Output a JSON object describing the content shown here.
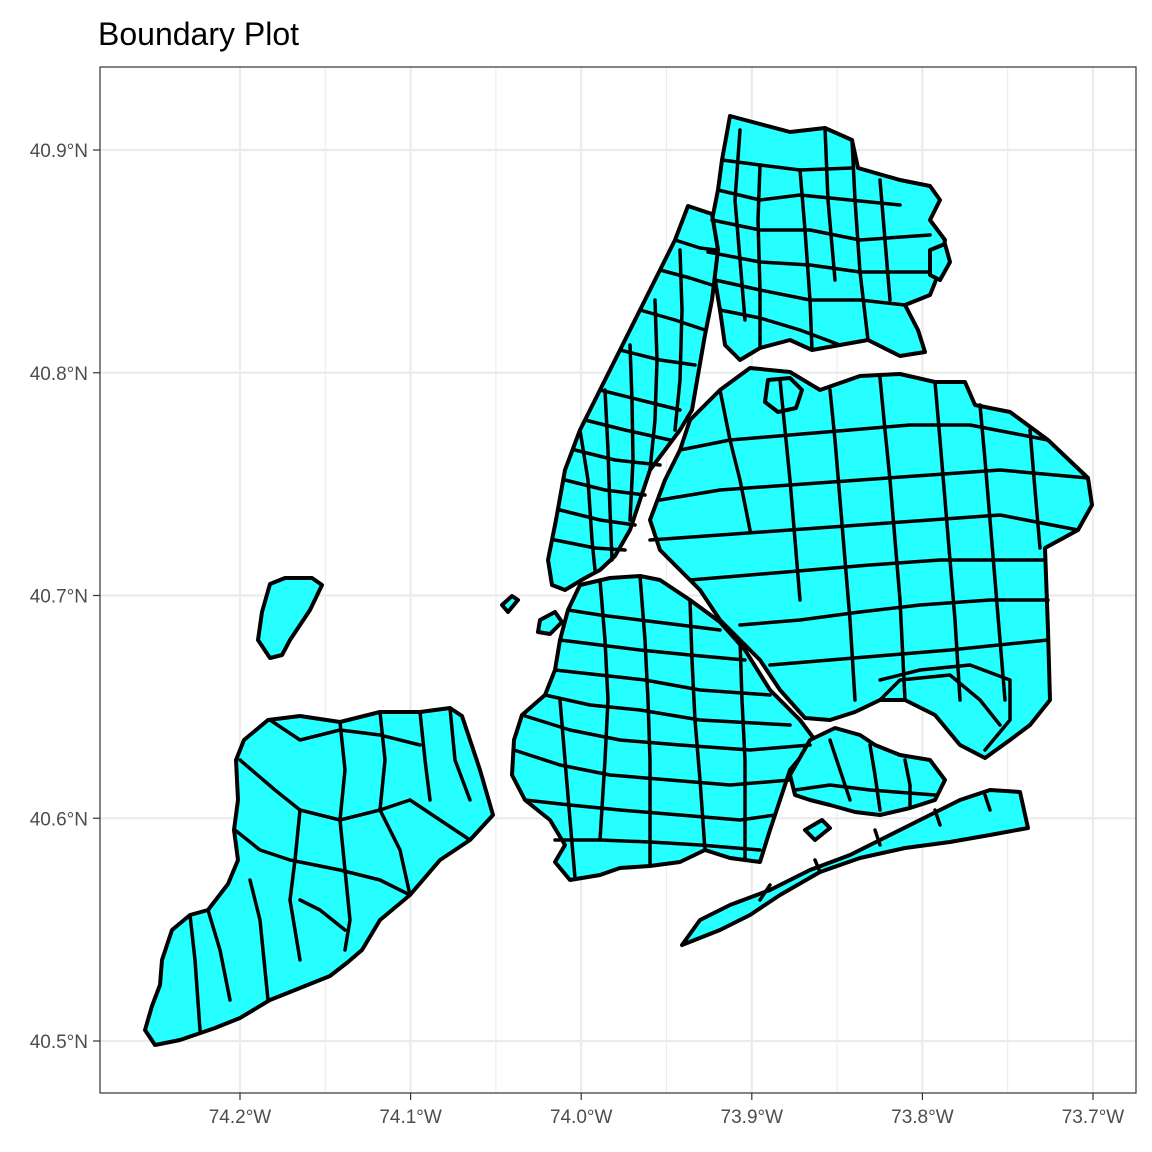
{
  "title": "Boundary Plot",
  "fill_color": "#26ffff",
  "stroke_color": "#000000",
  "grid_color": "#ebebeb",
  "x_axis": {
    "ticks": [
      {
        "value": -74.2,
        "label": "74.2°W"
      },
      {
        "value": -74.1,
        "label": "74.1°W"
      },
      {
        "value": -74.0,
        "label": "74.0°W"
      },
      {
        "value": -73.9,
        "label": "73.9°W"
      },
      {
        "value": -73.8,
        "label": "73.8°W"
      },
      {
        "value": -73.7,
        "label": "73.7°W"
      }
    ]
  },
  "y_axis": {
    "ticks": [
      {
        "value": 40.9,
        "label": "40.9°N"
      },
      {
        "value": 40.8,
        "label": "40.8°N"
      },
      {
        "value": 40.7,
        "label": "40.7°N"
      },
      {
        "value": 40.6,
        "label": "40.6°N"
      },
      {
        "value": 40.5,
        "label": "40.5°N"
      }
    ]
  }
}
